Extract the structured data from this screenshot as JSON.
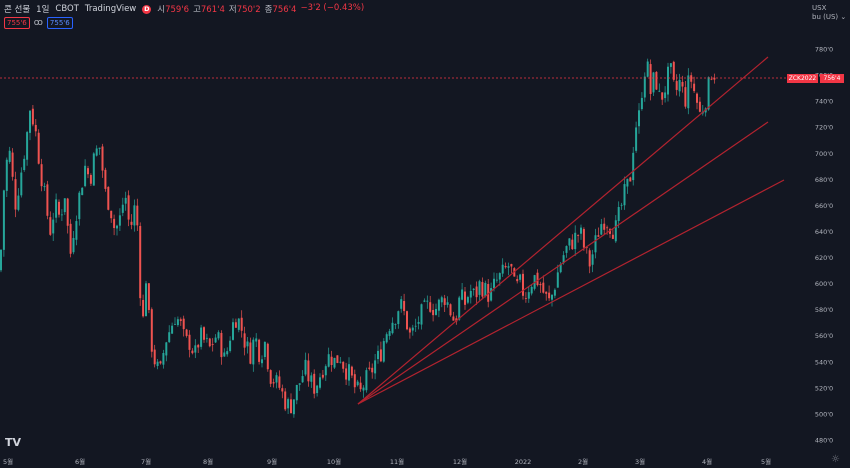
{
  "header": {
    "title": "콘 선물",
    "interval": "1일",
    "exchange": "CBOT",
    "brand": "TradingView",
    "indicator_letter": "D",
    "ohlc": [
      {
        "label": "시",
        "value": "759'6"
      },
      {
        "label": "고",
        "value": "761'4"
      },
      {
        "label": "저",
        "value": "750'2"
      },
      {
        "label": "종",
        "value": "756'4"
      }
    ],
    "change": "−3'2 (−0.43%)"
  },
  "trade": {
    "sell_price": "755'6",
    "buy_price": "755'6"
  },
  "axis_unit": {
    "currency": "USX",
    "per": "bu (US)"
  },
  "last_price": {
    "symbol": "ZCK2022",
    "value": "756'4"
  },
  "logo_text": "TV",
  "colors": {
    "background": "#131722",
    "up": "#26a69a",
    "down": "#ef5350",
    "trendline": "#b2232f",
    "price_line": "#f23645"
  },
  "chart_data": {
    "type": "candlestick",
    "y_ticks": [
      "780'0",
      "760'0",
      "740'0",
      "720'0",
      "700'0",
      "680'0",
      "660'0",
      "640'0",
      "620'0",
      "600'0",
      "580'0",
      "560'0",
      "540'0",
      "520'0",
      "500'0",
      "480'0"
    ],
    "y_values": [
      780,
      760,
      740,
      720,
      700,
      680,
      660,
      640,
      620,
      600,
      580,
      560,
      540,
      520,
      500,
      480
    ],
    "x_ticks": [
      "5월",
      "6월",
      "7월",
      "8월",
      "9월",
      "10월",
      "11월",
      "12월",
      "2022",
      "2월",
      "3월",
      "4월",
      "5월"
    ],
    "ylim": [
      469,
      803
    ],
    "close_path": [
      [
        0,
        610
      ],
      [
        5,
        690
      ],
      [
        10,
        700
      ],
      [
        15,
        660
      ],
      [
        20,
        680
      ],
      [
        24,
        700
      ],
      [
        28,
        720
      ],
      [
        30,
        735
      ],
      [
        35,
        720
      ],
      [
        40,
        690
      ],
      [
        45,
        665
      ],
      [
        50,
        640
      ],
      [
        55,
        660
      ],
      [
        60,
        650
      ],
      [
        65,
        670
      ],
      [
        70,
        620
      ],
      [
        75,
        650
      ],
      [
        80,
        670
      ],
      [
        85,
        690
      ],
      [
        90,
        680
      ],
      [
        95,
        700
      ],
      [
        100,
        705
      ],
      [
        105,
        670
      ],
      [
        110,
        660
      ],
      [
        115,
        640
      ],
      [
        120,
        650
      ],
      [
        125,
        670
      ],
      [
        130,
        640
      ],
      [
        135,
        660
      ],
      [
        138,
        640
      ],
      [
        142,
        560
      ],
      [
        146,
        605
      ],
      [
        150,
        560
      ],
      [
        155,
        540
      ],
      [
        160,
        530
      ],
      [
        165,
        555
      ],
      [
        170,
        565
      ],
      [
        175,
        575
      ],
      [
        180,
        570
      ],
      [
        185,
        555
      ],
      [
        190,
        555
      ],
      [
        195,
        545
      ],
      [
        200,
        560
      ],
      [
        205,
        555
      ],
      [
        210,
        550
      ],
      [
        215,
        560
      ],
      [
        220,
        555
      ],
      [
        225,
        540
      ],
      [
        230,
        560
      ],
      [
        235,
        575
      ],
      [
        240,
        570
      ],
      [
        245,
        555
      ],
      [
        250,
        545
      ],
      [
        255,
        560
      ],
      [
        260,
        545
      ],
      [
        265,
        555
      ],
      [
        270,
        530
      ],
      [
        275,
        525
      ],
      [
        280,
        520
      ],
      [
        285,
        510
      ],
      [
        290,
        505
      ],
      [
        295,
        515
      ],
      [
        300,
        525
      ],
      [
        305,
        535
      ],
      [
        310,
        525
      ],
      [
        315,
        520
      ],
      [
        320,
        530
      ],
      [
        325,
        540
      ],
      [
        330,
        545
      ],
      [
        335,
        540
      ],
      [
        340,
        545
      ],
      [
        345,
        535
      ],
      [
        350,
        530
      ],
      [
        355,
        520
      ],
      [
        360,
        515
      ],
      [
        365,
        525
      ],
      [
        370,
        530
      ],
      [
        375,
        540
      ],
      [
        380,
        545
      ],
      [
        385,
        560
      ],
      [
        390,
        570
      ],
      [
        395,
        575
      ],
      [
        400,
        585
      ],
      [
        405,
        575
      ],
      [
        410,
        560
      ],
      [
        415,
        565
      ],
      [
        420,
        575
      ],
      [
        425,
        580
      ],
      [
        430,
        585
      ],
      [
        435,
        580
      ],
      [
        440,
        585
      ],
      [
        445,
        590
      ],
      [
        450,
        580
      ],
      [
        455,
        570
      ],
      [
        460,
        590
      ],
      [
        465,
        585
      ],
      [
        470,
        595
      ],
      [
        475,
        590
      ],
      [
        480,
        600
      ],
      [
        485,
        595
      ],
      [
        490,
        590
      ],
      [
        495,
        600
      ],
      [
        500,
        605
      ],
      [
        505,
        610
      ],
      [
        510,
        615
      ],
      [
        515,
        595
      ],
      [
        520,
        600
      ],
      [
        525,
        590
      ],
      [
        530,
        600
      ],
      [
        535,
        605
      ],
      [
        540,
        600
      ],
      [
        545,
        590
      ],
      [
        550,
        585
      ],
      [
        555,
        600
      ],
      [
        560,
        615
      ],
      [
        565,
        625
      ],
      [
        570,
        630
      ],
      [
        575,
        635
      ],
      [
        580,
        640
      ],
      [
        585,
        625
      ],
      [
        590,
        615
      ],
      [
        595,
        630
      ],
      [
        600,
        645
      ],
      [
        605,
        650
      ],
      [
        610,
        645
      ],
      [
        615,
        640
      ],
      [
        620,
        655
      ],
      [
        625,
        670
      ],
      [
        630,
        680
      ],
      [
        635,
        720
      ],
      [
        640,
        730
      ],
      [
        643,
        760
      ],
      [
        647,
        770
      ],
      [
        650,
        745
      ],
      [
        655,
        760
      ],
      [
        660,
        740
      ],
      [
        665,
        750
      ],
      [
        670,
        765
      ],
      [
        675,
        745
      ],
      [
        680,
        755
      ],
      [
        685,
        740
      ],
      [
        690,
        760
      ],
      [
        695,
        745
      ],
      [
        700,
        730
      ],
      [
        705,
        740
      ],
      [
        710,
        755
      ],
      [
        715,
        760
      ]
    ],
    "last_value": 756.5
  }
}
